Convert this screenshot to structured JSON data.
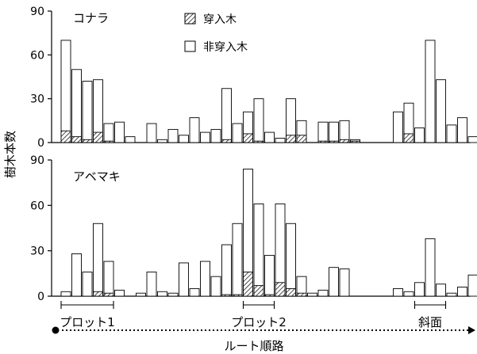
{
  "chart_data": [
    {
      "type": "bar",
      "stacked": true,
      "panel_label": "コナラ",
      "ylabel": "樹木本数",
      "ylim": [
        0,
        90
      ],
      "yticks": [
        0,
        30,
        60,
        90
      ],
      "grid": false,
      "legend": {
        "position": "top-center",
        "entries": [
          {
            "name": "穿入木",
            "pattern": "hatched"
          },
          {
            "name": "非穿入木",
            "pattern": "white"
          }
        ]
      },
      "bars": [
        {
          "total": 70,
          "bored": 8
        },
        {
          "total": 50,
          "bored": 4
        },
        {
          "total": 42,
          "bored": 2
        },
        {
          "total": 43,
          "bored": 7
        },
        {
          "total": 13,
          "bored": 1
        },
        {
          "total": 14,
          "bored": 0
        },
        {
          "total": 4,
          "bored": 0
        },
        {
          "total": 0,
          "bored": 0
        },
        {
          "total": 13,
          "bored": 0
        },
        {
          "total": 2,
          "bored": 0
        },
        {
          "total": 9,
          "bored": 0
        },
        {
          "total": 5,
          "bored": 0
        },
        {
          "total": 17,
          "bored": 0
        },
        {
          "total": 7,
          "bored": 0
        },
        {
          "total": 9,
          "bored": 0
        },
        {
          "total": 37,
          "bored": 2
        },
        {
          "total": 13,
          "bored": 0
        },
        {
          "total": 21,
          "bored": 6
        },
        {
          "total": 30,
          "bored": 1
        },
        {
          "total": 7,
          "bored": 0
        },
        {
          "total": 3,
          "bored": 0
        },
        {
          "total": 30,
          "bored": 5
        },
        {
          "total": 15,
          "bored": 5
        },
        {
          "total": 0,
          "bored": 0
        },
        {
          "total": 14,
          "bored": 1
        },
        {
          "total": 14,
          "bored": 1
        },
        {
          "total": 15,
          "bored": 2
        },
        {
          "total": 2,
          "bored": 1
        },
        {
          "total": 0,
          "bored": 0
        },
        {
          "total": 0,
          "bored": 0
        },
        {
          "total": 0,
          "bored": 0
        },
        {
          "total": 21,
          "bored": 0
        },
        {
          "total": 27,
          "bored": 6
        },
        {
          "total": 10,
          "bored": 0
        },
        {
          "total": 70,
          "bored": 0
        },
        {
          "total": 43,
          "bored": 0
        },
        {
          "total": 12,
          "bored": 0
        },
        {
          "total": 17,
          "bored": 0
        },
        {
          "total": 4,
          "bored": 0
        }
      ]
    },
    {
      "type": "bar",
      "stacked": true,
      "panel_label": "アベマキ",
      "ylim": [
        0,
        90
      ],
      "yticks": [
        0,
        30,
        60,
        90
      ],
      "grid": false,
      "bars": [
        {
          "total": 3,
          "bored": 0
        },
        {
          "total": 28,
          "bored": 0
        },
        {
          "total": 16,
          "bored": 0
        },
        {
          "total": 48,
          "bored": 3
        },
        {
          "total": 23,
          "bored": 2
        },
        {
          "total": 4,
          "bored": 0
        },
        {
          "total": 0,
          "bored": 0
        },
        {
          "total": 2,
          "bored": 0
        },
        {
          "total": 16,
          "bored": 0
        },
        {
          "total": 3,
          "bored": 0
        },
        {
          "total": 2,
          "bored": 0
        },
        {
          "total": 22,
          "bored": 0
        },
        {
          "total": 5,
          "bored": 0
        },
        {
          "total": 23,
          "bored": 0
        },
        {
          "total": 13,
          "bored": 0
        },
        {
          "total": 34,
          "bored": 1
        },
        {
          "total": 48,
          "bored": 1
        },
        {
          "total": 84,
          "bored": 16
        },
        {
          "total": 61,
          "bored": 7
        },
        {
          "total": 27,
          "bored": 1
        },
        {
          "total": 61,
          "bored": 9
        },
        {
          "total": 48,
          "bored": 5
        },
        {
          "total": 13,
          "bored": 2
        },
        {
          "total": 2,
          "bored": 0
        },
        {
          "total": 4,
          "bored": 0
        },
        {
          "total": 19,
          "bored": 0
        },
        {
          "total": 18,
          "bored": 0
        },
        {
          "total": 0,
          "bored": 0
        },
        {
          "total": 0,
          "bored": 0
        },
        {
          "total": 0,
          "bored": 0
        },
        {
          "total": 0,
          "bored": 0
        },
        {
          "total": 5,
          "bored": 0
        },
        {
          "total": 3,
          "bored": 0
        },
        {
          "total": 9,
          "bored": 0
        },
        {
          "total": 38,
          "bored": 0
        },
        {
          "total": 8,
          "bored": 0
        },
        {
          "total": 2,
          "bored": 0
        },
        {
          "total": 6,
          "bored": 0
        },
        {
          "total": 14,
          "bored": 0
        }
      ]
    }
  ],
  "xaxis": {
    "label": "ルート順路",
    "segments": [
      {
        "label": "プロット1",
        "from": 0,
        "to": 4
      },
      {
        "label": "プロット2",
        "from": 17,
        "to": 19
      },
      {
        "label": "斜面",
        "from": 33,
        "to": 35
      }
    ]
  }
}
